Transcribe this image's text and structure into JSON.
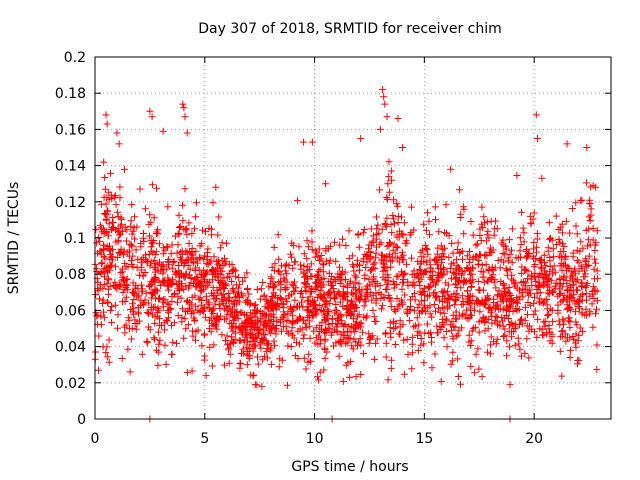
{
  "chart_data": {
    "type": "scatter",
    "title": "Day 307 of 2018, SRMTID for receiver chim",
    "xlabel": "GPS time / hours",
    "ylabel": "SRMTID / TECUs",
    "xlim": [
      0,
      23.5
    ],
    "ylim": [
      0,
      0.2
    ],
    "x_ticks": [
      0,
      5,
      10,
      15,
      20
    ],
    "x_tick_labels": [
      "0",
      "5",
      "10",
      "15",
      "20"
    ],
    "y_ticks": [
      0,
      0.02,
      0.04,
      0.06,
      0.08,
      0.1,
      0.12,
      0.14,
      0.16,
      0.18,
      0.2
    ],
    "y_tick_labels": [
      "0",
      "0.02",
      "0.04",
      "0.06",
      "0.08",
      "0.1",
      "0.12",
      "0.14",
      "0.16",
      "0.18",
      "0.2"
    ],
    "grid": true,
    "marker": "+",
    "marker_color": "#ff0000",
    "series": [
      {
        "name": "SRMTID",
        "x_range": [
          0,
          22.9
        ],
        "profile_hours": [
          0,
          0.5,
          1.0,
          2.0,
          3.0,
          4.0,
          5.0,
          6.0,
          7.0,
          7.5,
          8.0,
          9.0,
          10.0,
          11.0,
          12.0,
          13.0,
          13.5,
          14.0,
          15.0,
          16.0,
          17.0,
          18.0,
          19.0,
          20.0,
          21.0,
          22.0,
          22.9
        ],
        "profile_mean": [
          0.072,
          0.092,
          0.088,
          0.078,
          0.073,
          0.078,
          0.074,
          0.066,
          0.05,
          0.045,
          0.058,
          0.066,
          0.068,
          0.062,
          0.064,
          0.08,
          0.086,
          0.078,
          0.07,
          0.072,
          0.072,
          0.074,
          0.064,
          0.078,
          0.072,
          0.07,
          0.086
        ],
        "profile_spread": [
          0.018,
          0.024,
          0.022,
          0.02,
          0.018,
          0.02,
          0.017,
          0.015,
          0.012,
          0.011,
          0.014,
          0.016,
          0.017,
          0.016,
          0.017,
          0.022,
          0.024,
          0.02,
          0.018,
          0.019,
          0.018,
          0.019,
          0.017,
          0.02,
          0.019,
          0.018,
          0.022
        ],
        "n_points": 2700,
        "outliers": [
          [
            0.5,
            0.168
          ],
          [
            0.55,
            0.163
          ],
          [
            1.0,
            0.158
          ],
          [
            1.1,
            0.152
          ],
          [
            2.5,
            0.17
          ],
          [
            2.6,
            0.167
          ],
          [
            3.1,
            0.159
          ],
          [
            4.0,
            0.174
          ],
          [
            4.05,
            0.172
          ],
          [
            4.1,
            0.167
          ],
          [
            4.2,
            0.158
          ],
          [
            5.5,
            0.128
          ],
          [
            9.5,
            0.153
          ],
          [
            9.9,
            0.153
          ],
          [
            10.5,
            0.13
          ],
          [
            12.1,
            0.155
          ],
          [
            13.1,
            0.182
          ],
          [
            13.15,
            0.178
          ],
          [
            13.2,
            0.174
          ],
          [
            13.3,
            0.167
          ],
          [
            13.0,
            0.16
          ],
          [
            13.8,
            0.166
          ],
          [
            14.0,
            0.15
          ],
          [
            16.2,
            0.138
          ],
          [
            20.1,
            0.168
          ],
          [
            20.15,
            0.155
          ],
          [
            21.5,
            0.152
          ],
          [
            22.4,
            0.15
          ],
          [
            2.5,
            0.0
          ],
          [
            10.8,
            0.0
          ],
          [
            18.9,
            0.0
          ],
          [
            18.9,
            0.019
          ],
          [
            7.3,
            0.019
          ],
          [
            7.6,
            0.018
          ],
          [
            1.6,
            0.026
          ],
          [
            6.6,
            0.028
          ],
          [
            11.6,
            0.023
          ]
        ]
      }
    ]
  }
}
